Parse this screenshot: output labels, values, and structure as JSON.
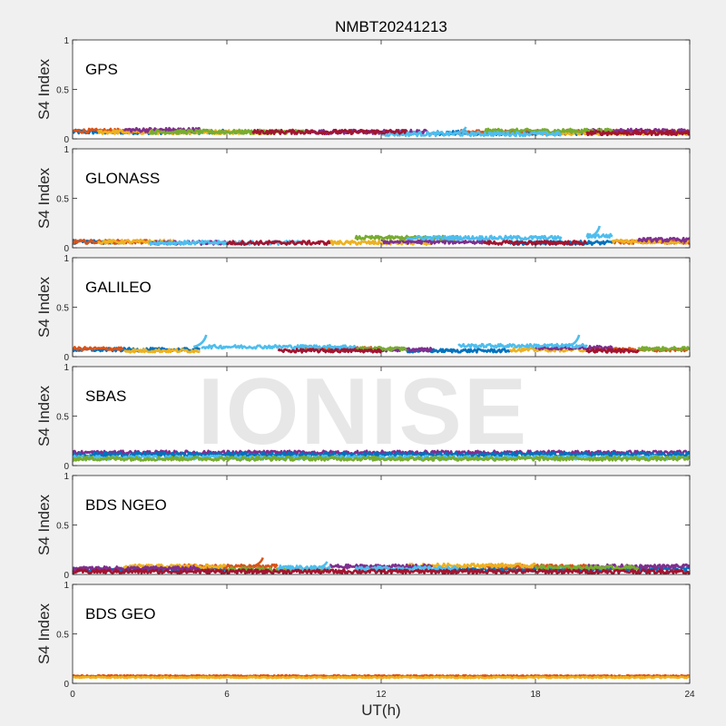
{
  "figure": {
    "title": "NMBT20241213",
    "watermark": "IONISE",
    "xlabel": "UT(h)",
    "ylabel": "S4 Index"
  },
  "chart_data": [
    {
      "type": "line",
      "panel_label": "GPS",
      "ylabel": "S4 Index",
      "xlim": [
        0,
        24
      ],
      "ylim": [
        0,
        1
      ],
      "xticks": [
        0,
        6,
        12,
        18,
        24
      ],
      "yticks": [
        0,
        0.5,
        1
      ],
      "baseline": 0.07,
      "noise": 0.022,
      "series": [
        {
          "color": "#0072BD",
          "segments": [
            [
              0,
              6,
              0.07
            ],
            [
              14,
              20,
              0.06
            ]
          ]
        },
        {
          "color": "#D95319",
          "segments": [
            [
              0,
              4,
              0.08
            ],
            [
              15,
              24,
              0.07
            ]
          ]
        },
        {
          "color": "#EDB120",
          "segments": [
            [
              1,
              8,
              0.07
            ],
            [
              18,
              24,
              0.06
            ]
          ]
        },
        {
          "color": "#7E2F8E",
          "segments": [
            [
              2,
              5,
              0.09
            ],
            [
              9,
              14,
              0.07
            ],
            [
              20,
              24,
              0.08
            ]
          ]
        },
        {
          "color": "#77AC30",
          "segments": [
            [
              3,
              9,
              0.07
            ],
            [
              16,
              21,
              0.08
            ]
          ]
        },
        {
          "color": "#4DBEEE",
          "segments": [
            [
              12,
              19,
              0.05
            ]
          ],
          "spikes": [
            [
              15.3,
              0.12
            ]
          ]
        },
        {
          "color": "#A2142F",
          "segments": [
            [
              7,
              13,
              0.07
            ],
            [
              20,
              24,
              0.06
            ]
          ]
        }
      ]
    },
    {
      "type": "line",
      "panel_label": "GLONASS",
      "ylabel": "S4 Index",
      "xlim": [
        0,
        24
      ],
      "ylim": [
        0,
        1
      ],
      "xticks": [
        0,
        6,
        12,
        18,
        24
      ],
      "yticks": [
        0,
        0.5,
        1
      ],
      "baseline": 0.055,
      "noise": 0.02,
      "series": [
        {
          "color": "#0072BD",
          "segments": [
            [
              0,
              2,
              0.06
            ],
            [
              17,
              21,
              0.05
            ]
          ]
        },
        {
          "color": "#D95319",
          "segments": [
            [
              0,
              3,
              0.06
            ],
            [
              21,
              24,
              0.06
            ]
          ]
        },
        {
          "color": "#EDB120",
          "segments": [
            [
              1,
              4,
              0.06
            ],
            [
              10,
              14,
              0.05
            ],
            [
              21,
              24,
              0.06
            ]
          ]
        },
        {
          "color": "#7E2F8E",
          "segments": [
            [
              3,
              6,
              0.05
            ],
            [
              12,
              16,
              0.06
            ],
            [
              22,
              24,
              0.08
            ]
          ]
        },
        {
          "color": "#77AC30",
          "segments": [
            [
              11,
              15,
              0.1
            ]
          ]
        },
        {
          "color": "#4DBEEE",
          "segments": [
            [
              3,
              9,
              0.05
            ],
            [
              13,
              19,
              0.1
            ],
            [
              20,
              21,
              0.12
            ]
          ],
          "spikes": [
            [
              20.5,
              0.22
            ]
          ]
        },
        {
          "color": "#A2142F",
          "segments": [
            [
              6,
              10,
              0.05
            ],
            [
              16,
              20,
              0.05
            ]
          ]
        }
      ]
    },
    {
      "type": "line",
      "panel_label": "GALILEO",
      "ylabel": "S4 Index",
      "xlim": [
        0,
        24
      ],
      "ylim": [
        0,
        1
      ],
      "xticks": [
        0,
        6,
        12,
        18,
        24
      ],
      "yticks": [
        0,
        0.5,
        1
      ],
      "baseline": 0.065,
      "noise": 0.018,
      "series": [
        {
          "color": "#0072BD",
          "segments": [
            [
              0,
              5,
              0.07
            ],
            [
              13,
              17,
              0.06
            ]
          ]
        },
        {
          "color": "#D95319",
          "segments": [
            [
              0,
              2,
              0.08
            ],
            [
              9,
              12,
              0.08
            ],
            [
              21,
              24,
              0.07
            ]
          ]
        },
        {
          "color": "#EDB120",
          "segments": [
            [
              2,
              5,
              0.06
            ],
            [
              17,
              21,
              0.07
            ]
          ]
        },
        {
          "color": "#7E2F8E",
          "segments": [
            [
              10,
              14,
              0.07
            ],
            [
              18,
              21,
              0.09
            ]
          ]
        },
        {
          "color": "#77AC30",
          "segments": [
            [
              11,
              13,
              0.08
            ],
            [
              22,
              24,
              0.08
            ]
          ]
        },
        {
          "color": "#4DBEEE",
          "segments": [
            [
              5,
              11,
              0.1
            ],
            [
              15,
              20,
              0.11
            ]
          ],
          "spikes": [
            [
              5.2,
              0.22
            ],
            [
              19.7,
              0.22
            ]
          ]
        },
        {
          "color": "#A2142F",
          "segments": [
            [
              8,
              12,
              0.06
            ],
            [
              20,
              22,
              0.06
            ]
          ]
        }
      ]
    },
    {
      "type": "line",
      "panel_label": "SBAS",
      "ylabel": "S4 Index",
      "xlim": [
        0,
        24
      ],
      "ylim": [
        0,
        1
      ],
      "xticks": [
        0,
        6,
        12,
        18,
        24
      ],
      "yticks": [
        0,
        0.5,
        1
      ],
      "baseline": 0.12,
      "noise": 0.02,
      "series": [
        {
          "color": "#7E2F8E",
          "segments": [
            [
              0,
              24,
              0.13
            ]
          ]
        },
        {
          "color": "#0072BD",
          "segments": [
            [
              0,
              24,
              0.11
            ]
          ]
        },
        {
          "color": "#4DBEEE",
          "segments": [
            [
              0,
              24,
              0.08
            ]
          ]
        },
        {
          "color": "#77AC30",
          "segments": [
            [
              0,
              24,
              0.07
            ]
          ]
        }
      ]
    },
    {
      "type": "line",
      "panel_label": "BDS NGEO",
      "ylabel": "S4 Index",
      "xlim": [
        0,
        24
      ],
      "ylim": [
        0,
        1
      ],
      "xticks": [
        0,
        6,
        12,
        18,
        24
      ],
      "yticks": [
        0,
        0.5,
        1
      ],
      "baseline": 0.06,
      "noise": 0.02,
      "series": [
        {
          "color": "#0072BD",
          "segments": [
            [
              0,
              6,
              0.05
            ],
            [
              14,
              24,
              0.05
            ]
          ]
        },
        {
          "color": "#D95319",
          "segments": [
            [
              4,
              8,
              0.08
            ],
            [
              16,
              20,
              0.08
            ]
          ],
          "spikes": [
            [
              7.4,
              0.17
            ]
          ]
        },
        {
          "color": "#EDB120",
          "segments": [
            [
              2,
              6,
              0.08
            ],
            [
              13,
              18,
              0.09
            ]
          ]
        },
        {
          "color": "#7E2F8E",
          "segments": [
            [
              0,
              5,
              0.06
            ],
            [
              10,
              14,
              0.08
            ],
            [
              20,
              24,
              0.08
            ]
          ]
        },
        {
          "color": "#77AC30",
          "segments": [
            [
              6,
              10,
              0.05
            ],
            [
              18,
              22,
              0.07
            ]
          ]
        },
        {
          "color": "#4DBEEE",
          "segments": [
            [
              8,
              10,
              0.07
            ],
            [
              11,
              15,
              0.06
            ]
          ],
          "spikes": [
            [
              9.9,
              0.13
            ]
          ]
        },
        {
          "color": "#A2142F",
          "segments": [
            [
              0,
              24,
              0.03
            ]
          ]
        }
      ]
    },
    {
      "type": "line",
      "panel_label": "BDS GEO",
      "ylabel": "S4 Index",
      "xlim": [
        0,
        24
      ],
      "ylim": [
        0,
        1
      ],
      "xticks": [
        0,
        6,
        12,
        18,
        24
      ],
      "yticks": [
        0,
        0.5,
        1
      ],
      "baseline": 0.07,
      "noise": 0.007,
      "series": [
        {
          "color": "#D95319",
          "segments": [
            [
              0,
              24,
              0.075
            ]
          ]
        },
        {
          "color": "#EDB120",
          "segments": [
            [
              0,
              24,
              0.06
            ]
          ]
        }
      ]
    }
  ]
}
